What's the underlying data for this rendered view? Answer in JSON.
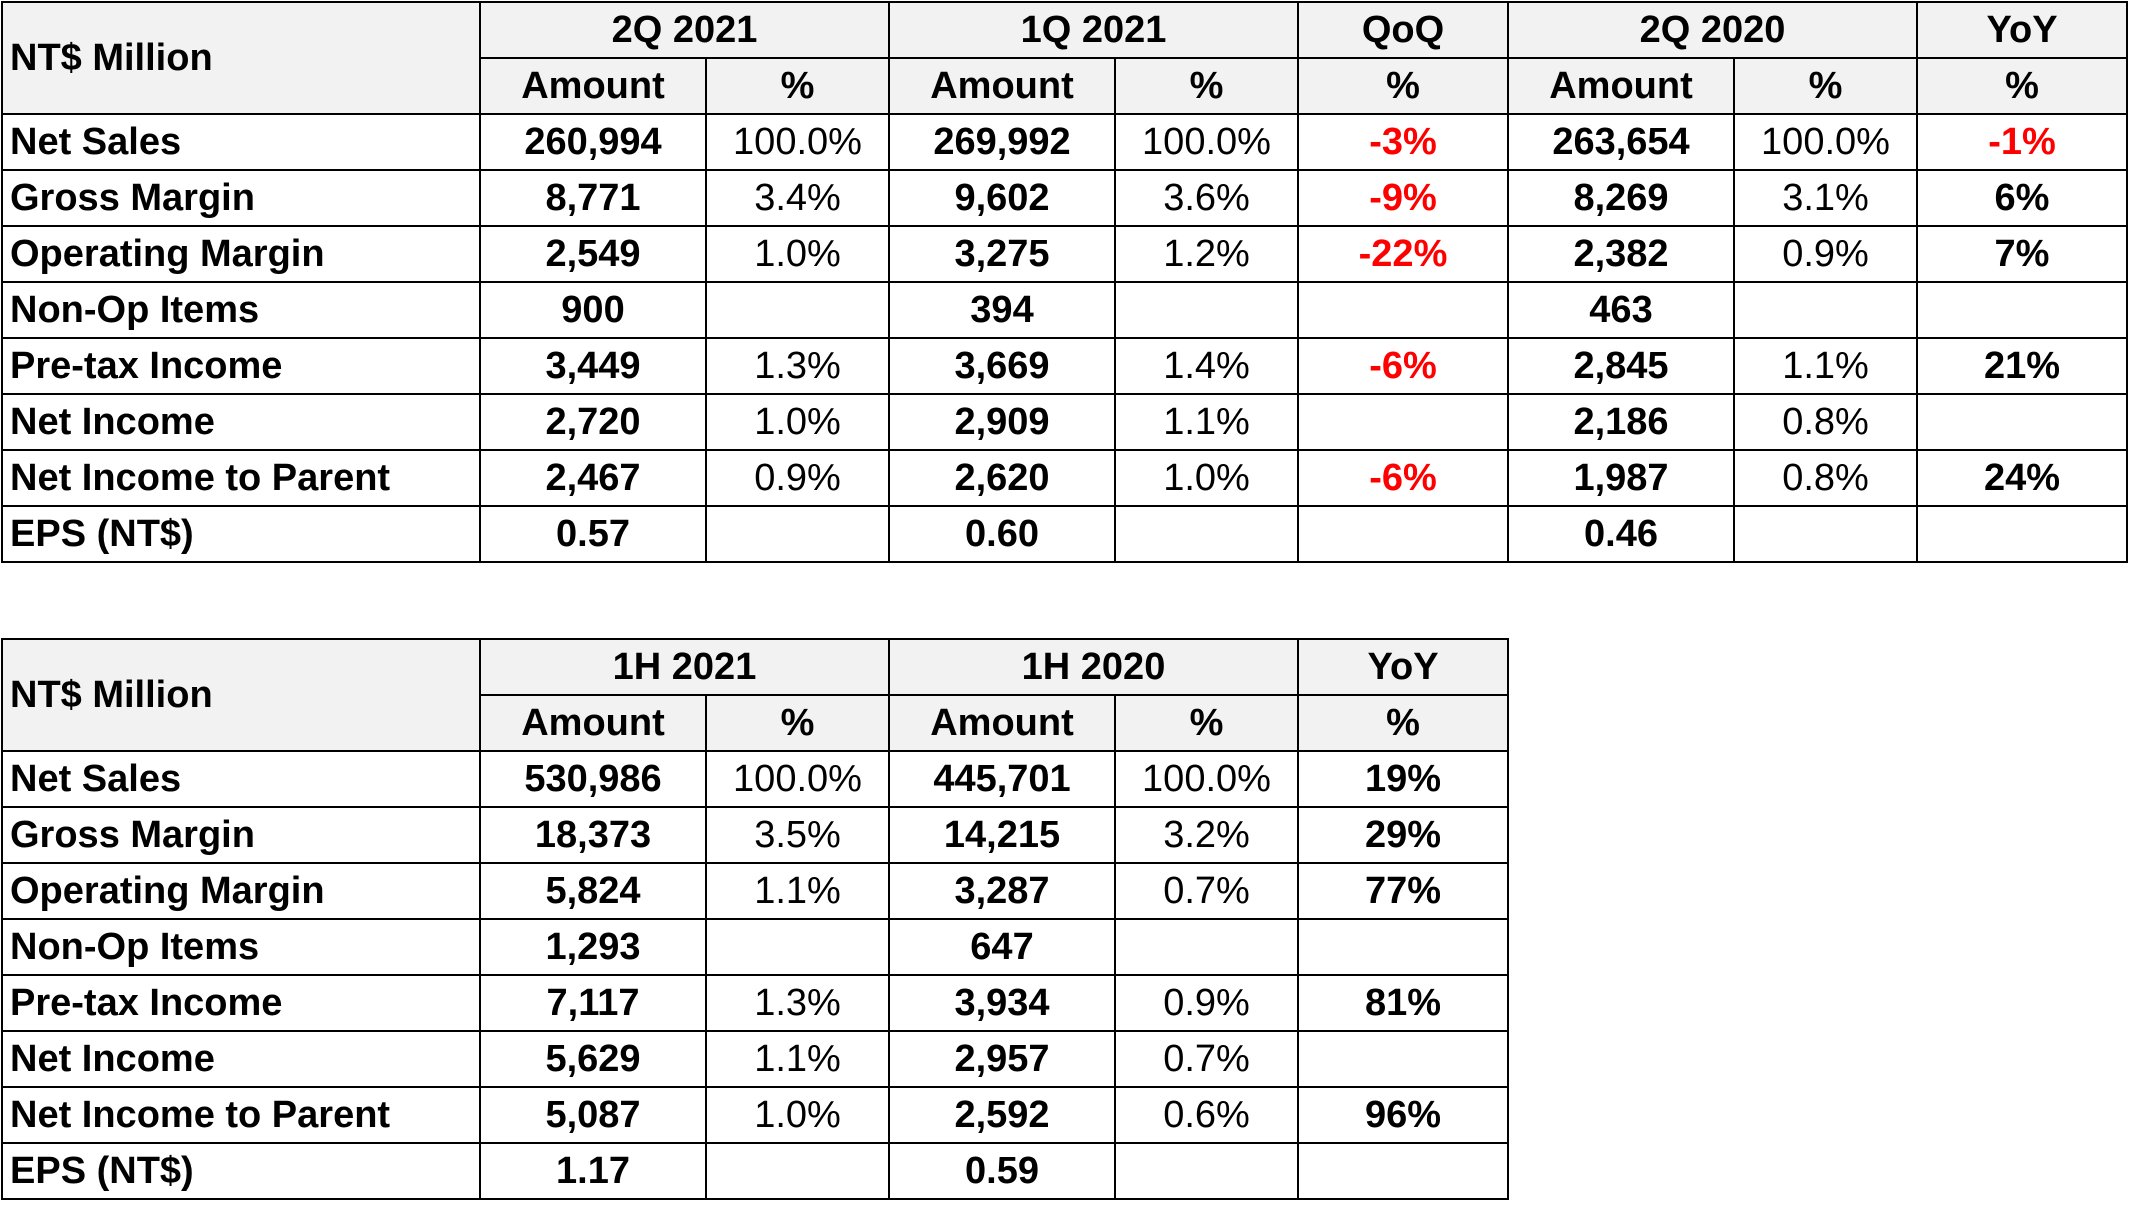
{
  "colors": {
    "header_bg": "#f2f2f2",
    "negative": "#ff0000",
    "border": "#000000"
  },
  "quarterly": {
    "corner": "NT$ Million",
    "periods": [
      "2Q 2021",
      "1Q 2021",
      "QoQ",
      "2Q 2020",
      "YoY"
    ],
    "subheaders": [
      "Amount",
      "%",
      "Amount",
      "%",
      "%",
      "Amount",
      "%",
      "%"
    ],
    "rows": [
      {
        "label": "Net Sales",
        "cells": [
          "260,994",
          "100.0%",
          "269,992",
          "100.0%",
          "-3%",
          "263,654",
          "100.0%",
          "-1%"
        ]
      },
      {
        "label": "Gross Margin",
        "cells": [
          "8,771",
          "3.4%",
          "9,602",
          "3.6%",
          "-9%",
          "8,269",
          "3.1%",
          "6%"
        ]
      },
      {
        "label": "Operating Margin",
        "cells": [
          "2,549",
          "1.0%",
          "3,275",
          "1.2%",
          "-22%",
          "2,382",
          "0.9%",
          "7%"
        ]
      },
      {
        "label": "Non-Op Items",
        "cells": [
          "900",
          "",
          "394",
          "",
          "",
          "463",
          "",
          ""
        ]
      },
      {
        "label": "Pre-tax Income",
        "cells": [
          "3,449",
          "1.3%",
          "3,669",
          "1.4%",
          "-6%",
          "2,845",
          "1.1%",
          "21%"
        ]
      },
      {
        "label": "Net Income",
        "cells": [
          "2,720",
          "1.0%",
          "2,909",
          "1.1%",
          "",
          "2,186",
          "0.8%",
          ""
        ]
      },
      {
        "label": "Net Income to Parent",
        "cells": [
          "2,467",
          "0.9%",
          "2,620",
          "1.0%",
          "-6%",
          "1,987",
          "0.8%",
          "24%"
        ]
      },
      {
        "label": "EPS (NT$)",
        "cells": [
          "0.57",
          "",
          "0.60",
          "",
          "",
          "0.46",
          "",
          ""
        ]
      }
    ]
  },
  "half_year": {
    "corner": "NT$ Million",
    "periods": [
      "1H 2021",
      "1H 2020",
      "YoY"
    ],
    "subheaders": [
      "Amount",
      "%",
      "Amount",
      "%",
      "%"
    ],
    "rows": [
      {
        "label": "Net Sales",
        "cells": [
          "530,986",
          "100.0%",
          "445,701",
          "100.0%",
          "19%"
        ]
      },
      {
        "label": "Gross Margin",
        "cells": [
          "18,373",
          "3.5%",
          "14,215",
          "3.2%",
          "29%"
        ]
      },
      {
        "label": "Operating Margin",
        "cells": [
          "5,824",
          "1.1%",
          "3,287",
          "0.7%",
          "77%"
        ]
      },
      {
        "label": "Non-Op Items",
        "cells": [
          "1,293",
          "",
          "647",
          "",
          ""
        ]
      },
      {
        "label": "Pre-tax Income",
        "cells": [
          "7,117",
          "1.3%",
          "3,934",
          "0.9%",
          "81%"
        ]
      },
      {
        "label": "Net Income",
        "cells": [
          "5,629",
          "1.1%",
          "2,957",
          "0.7%",
          ""
        ]
      },
      {
        "label": "Net Income to Parent",
        "cells": [
          "5,087",
          "1.0%",
          "2,592",
          "0.6%",
          "96%"
        ]
      },
      {
        "label": "EPS (NT$)",
        "cells": [
          "1.17",
          "",
          "0.59",
          "",
          ""
        ]
      }
    ]
  }
}
